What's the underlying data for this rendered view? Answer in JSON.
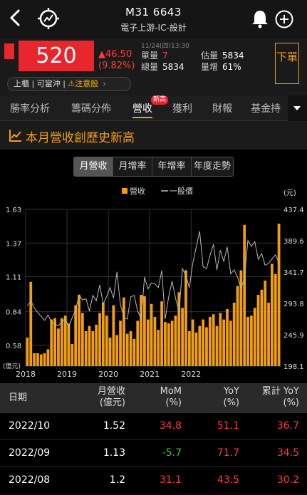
{
  "header": {
    "title": "M31 6643",
    "subtitle": "電子上游-IC-設計"
  },
  "quote": {
    "price": "520",
    "change": "▲46.50",
    "change_pct": "(9.82%)",
    "datetime": "11/24(四)13:30",
    "single_label": "單量",
    "single_value": "7",
    "total_label": "總量",
    "total_value": "5834",
    "est_label": "估量",
    "est_value": "5834",
    "ratio_label": "量增",
    "ratio_value": "61%",
    "tags": [
      "上櫃",
      "可當沖",
      "⚠注意股"
    ],
    "order_label": "下單",
    "colors": {
      "up": "#ff3b3b",
      "accent": "#f29e13",
      "price_bg": "#e8262d"
    }
  },
  "tabs": [
    {
      "label": "勝率分析"
    },
    {
      "label": "籌碼分佈"
    },
    {
      "label": "營收",
      "badge": "新高",
      "active": true
    },
    {
      "label": "獲利"
    },
    {
      "label": "財報"
    },
    {
      "label": "基金持"
    }
  ],
  "section": {
    "title": "本月營收創歷史新高",
    "icon": "line-chart-icon"
  },
  "segments": [
    {
      "label": "月營收",
      "active": true
    },
    {
      "label": "月增率"
    },
    {
      "label": "年增率"
    },
    {
      "label": "年度走勢"
    }
  ],
  "chart_data": {
    "type": "bar",
    "legend": [
      {
        "name": "營收",
        "color": "#f29e13"
      },
      {
        "name": "一股價",
        "color": "#bbbbbb"
      }
    ],
    "legend_position": "top",
    "ylabel_left": "(億元)",
    "ylabel_right": "(元)",
    "ylim_left": [
      0.42,
      1.63
    ],
    "ylim_right": [
      198.1,
      437.4
    ],
    "yticks_left": [
      "1.63",
      "1.37",
      "1.11",
      "0.84",
      "0.58"
    ],
    "yticks_right": [
      "437.4",
      "389.6",
      "341.7",
      "293.8",
      "245.9",
      "198.1"
    ],
    "xticks": [
      "2018",
      "2019",
      "2020",
      "2021",
      "2022"
    ],
    "grid": true,
    "series": [
      {
        "name": "營收",
        "type": "bar",
        "values": [
          0.64,
          1.07,
          0.52,
          0.52,
          0.51,
          0.52,
          0.55,
          0.78,
          0.79,
          0.71,
          0.79,
          0.81,
          0.75,
          0.59,
          0.89,
          0.97,
          0.83,
          0.69,
          0.73,
          0.69,
          0.74,
          0.83,
          0.91,
          0.81,
          0.64,
          0.89,
          0.66,
          0.77,
          0.95,
          0.67,
          0.69,
          0.63,
          0.77,
          0.97,
          0.96,
          0.78,
          0.9,
          0.8,
          0.7,
          0.92,
          0.76,
          0.75,
          0.77,
          0.81,
          0.99,
          0.87,
          1.16,
          0.69,
          0.78,
          0.68,
          0.73,
          0.78,
          0.72,
          0.8,
          0.82,
          0.73,
          0.83,
          0.78,
          0.86,
          0.77,
          0.91,
          1.04,
          1.16,
          1.51,
          0.8,
          0.81,
          0.87,
          0.97,
          1.01,
          1.08,
          0.91,
          1.21,
          1.13,
          1.52
        ]
      },
      {
        "name": "一股價",
        "type": "line",
        "values": [
          290,
          298,
          287,
          280,
          274,
          268,
          276,
          265,
          262,
          260,
          266,
          270,
          258,
          272,
          283,
          307,
          299,
          301,
          282,
          306,
          298,
          322,
          293,
          304,
          318,
          302,
          342,
          292,
          273,
          270,
          304,
          306,
          282,
          271,
          334,
          316,
          325,
          324,
          318,
          344,
          270,
          304,
          328,
          302,
          281,
          347,
          336,
          318,
          355,
          380,
          404,
          350,
          347,
          367,
          384,
          345,
          375,
          358,
          380,
          339,
          345,
          334,
          316,
          333,
          390,
          381,
          388,
          361,
          370,
          352,
          355,
          362,
          368,
          356
        ]
      }
    ]
  },
  "table": {
    "headers": {
      "date": "日期",
      "revenue_1": "月營收",
      "revenue_2": "(億元)",
      "mom_1": "MoM",
      "mom_2": "(%)",
      "yoy_1": "YoY",
      "yoy_2": "(%)",
      "cum_1": "累計 YoY",
      "cum_2": "(%)"
    },
    "rows": [
      {
        "date": "2022/10",
        "revenue": "1.52",
        "mom": "34.8",
        "yoy": "51.1",
        "cum": "36.7",
        "mom_color": "red"
      },
      {
        "date": "2022/09",
        "revenue": "1.13",
        "mom": "-5.7",
        "yoy": "71.7",
        "cum": "34.5",
        "mom_color": "green"
      },
      {
        "date": "2022/08",
        "revenue": "1.2",
        "mom": "31.1",
        "yoy": "43.5",
        "cum": "30.2",
        "mom_color": "red"
      }
    ]
  }
}
